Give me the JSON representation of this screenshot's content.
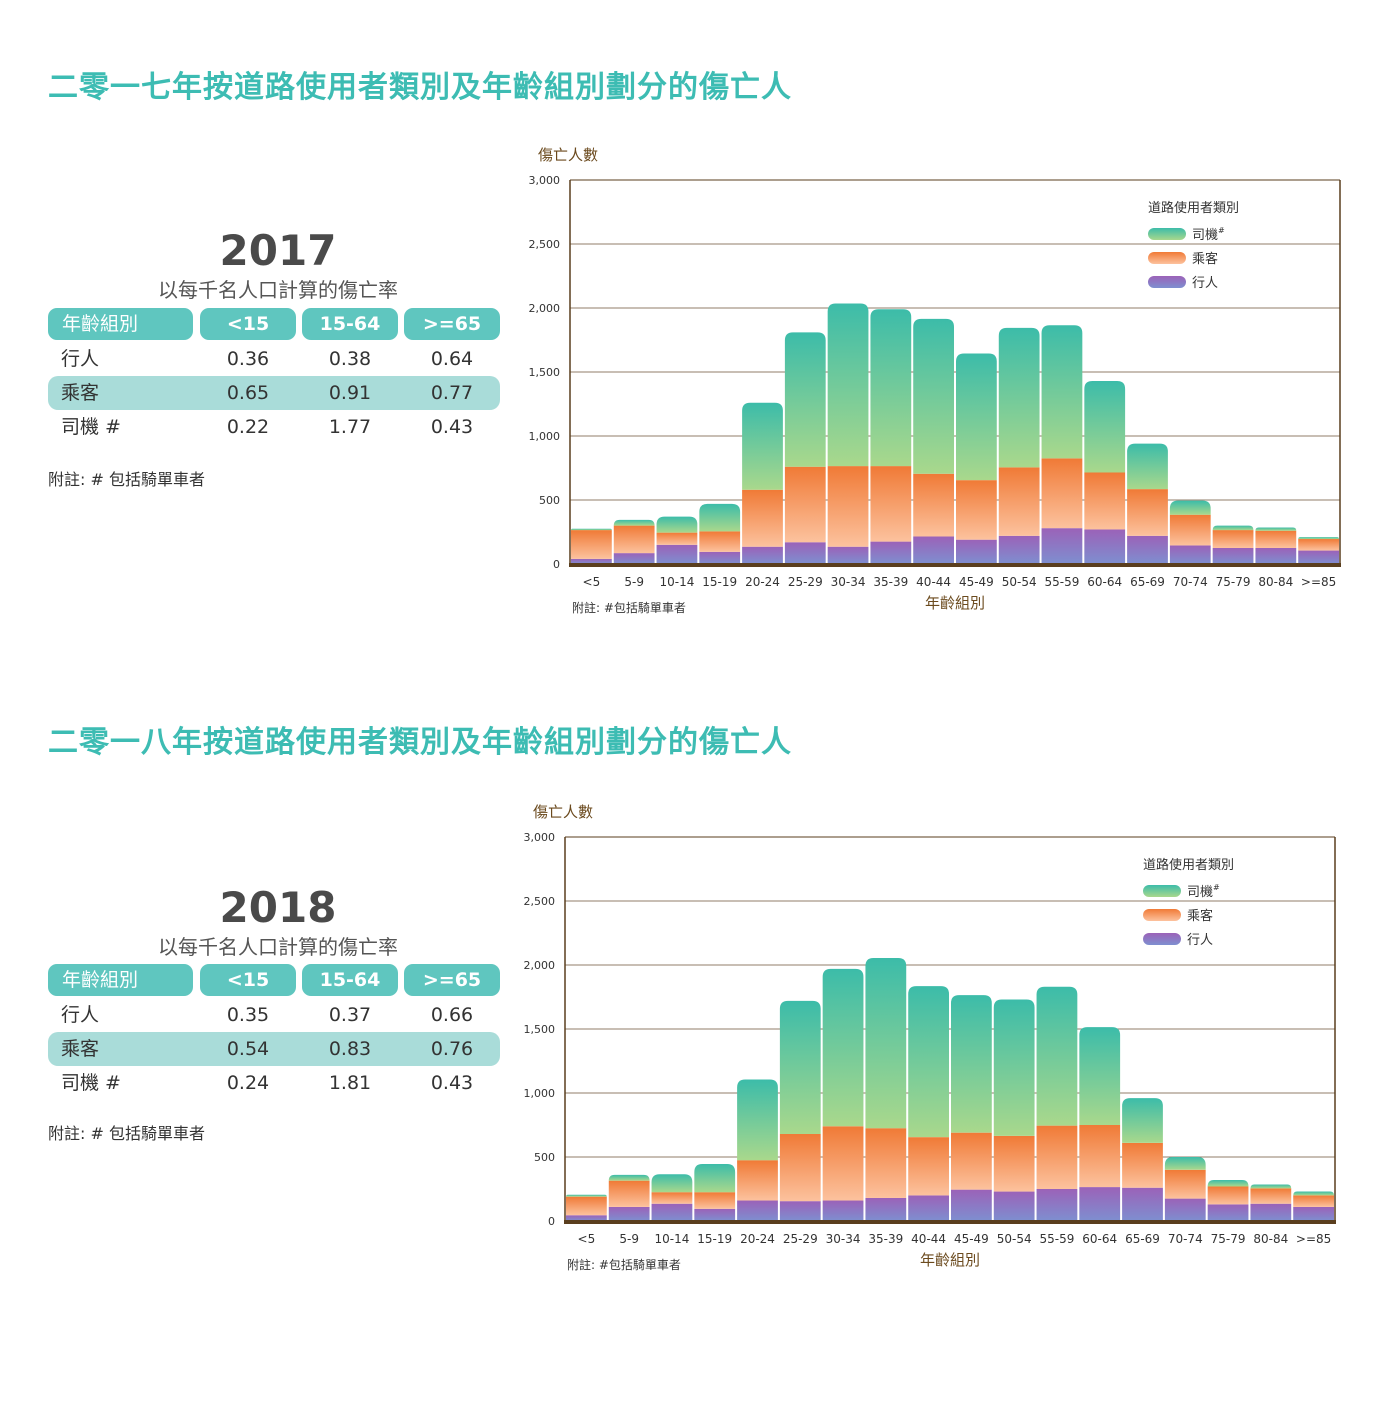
{
  "sections": [
    {
      "title": "二零一七年按道路使用者類別及年齡組別劃分的傷亡人",
      "year": "2017",
      "rate_title": "以每千名人口計算的傷亡率",
      "table": {
        "headers": [
          "年齡組別",
          "<15",
          "15-64",
          ">=65"
        ],
        "rows": [
          [
            "行人",
            "0.36",
            "0.38",
            "0.64"
          ],
          [
            "乘客",
            "0.65",
            "0.91",
            "0.77"
          ],
          [
            "司機 #",
            "0.22",
            "1.77",
            "0.43"
          ]
        ]
      },
      "note": "附註:  #  包括騎單車者"
    },
    {
      "title": "二零一八年按道路使用者類別及年齡組別劃分的傷亡人",
      "year": "2018",
      "rate_title": "以每千名人口計算的傷亡率",
      "table": {
        "headers": [
          "年齡組別",
          "<15",
          "15-64",
          ">=65"
        ],
        "rows": [
          [
            "行人",
            "0.35",
            "0.37",
            "0.66"
          ],
          [
            "乘客",
            "0.54",
            "0.83",
            "0.76"
          ],
          [
            "司機 #",
            "0.24",
            "1.81",
            "0.43"
          ]
        ]
      },
      "note": "附註:  #  包括騎單車者"
    }
  ],
  "colors": {
    "title": "#3dbcb3",
    "driver_top": "#3cbca9",
    "driver_bottom": "#a9d88c",
    "passenger_top": "#f07a36",
    "passenger_bottom": "#fcc29e",
    "pedestrian_top": "#9b62b8",
    "pedestrian_bottom": "#7e8fd0",
    "axis": "#5a3e1e"
  },
  "chart_data": [
    {
      "type": "bar",
      "stacked": true,
      "ylabel": "傷亡人數",
      "xlabel": "年齡組別",
      "ylim": [
        0,
        3000
      ],
      "yticks": [
        "0",
        "500",
        "1,000",
        "1,500",
        "2,000",
        "2,500",
        "3,000"
      ],
      "legend_title": "道路使用者類別",
      "legend_position": "top-right",
      "note": "附註:  #包括騎單車者",
      "categories": [
        "<5",
        "5-9",
        "10-14",
        "15-19",
        "20-24",
        "25-29",
        "30-34",
        "35-39",
        "40-44",
        "45-49",
        "50-54",
        "55-59",
        "60-64",
        "65-69",
        "70-74",
        "75-79",
        "80-84",
        ">=85"
      ],
      "series": [
        {
          "name": "行人",
          "values": [
            40,
            85,
            150,
            95,
            135,
            170,
            135,
            175,
            215,
            190,
            220,
            280,
            270,
            220,
            145,
            125,
            125,
            105
          ]
        },
        {
          "name": "乘客",
          "values": [
            225,
            215,
            95,
            160,
            445,
            590,
            630,
            590,
            490,
            465,
            535,
            545,
            445,
            365,
            240,
            140,
            135,
            90
          ]
        },
        {
          "name": "司機",
          "super": "#",
          "values": [
            10,
            45,
            125,
            215,
            680,
            1050,
            1270,
            1225,
            1210,
            990,
            1090,
            1040,
            715,
            355,
            110,
            35,
            25,
            15
          ]
        }
      ]
    },
    {
      "type": "bar",
      "stacked": true,
      "ylabel": "傷亡人數",
      "xlabel": "年齡組別",
      "ylim": [
        0,
        3000
      ],
      "yticks": [
        "0",
        "500",
        "1,000",
        "1,500",
        "2,000",
        "2,500",
        "3,000"
      ],
      "legend_title": "道路使用者類別",
      "legend_position": "top-right",
      "note": "附註:  #包括騎單車者",
      "categories": [
        "<5",
        "5-9",
        "10-14",
        "15-19",
        "20-24",
        "25-29",
        "30-34",
        "35-39",
        "40-44",
        "45-49",
        "50-54",
        "55-59",
        "60-64",
        "65-69",
        "70-74",
        "75-79",
        "80-84",
        ">=85"
      ],
      "series": [
        {
          "name": "行人",
          "values": [
            45,
            110,
            135,
            95,
            160,
            155,
            160,
            180,
            200,
            245,
            230,
            250,
            265,
            260,
            175,
            130,
            135,
            110
          ]
        },
        {
          "name": "乘客",
          "values": [
            145,
            205,
            90,
            130,
            315,
            525,
            580,
            545,
            455,
            445,
            435,
            495,
            485,
            350,
            225,
            140,
            120,
            90
          ]
        },
        {
          "name": "司機",
          "super": "#",
          "values": [
            15,
            45,
            140,
            220,
            630,
            1040,
            1230,
            1330,
            1180,
            1075,
            1065,
            1085,
            765,
            350,
            100,
            50,
            30,
            30
          ]
        }
      ]
    }
  ]
}
